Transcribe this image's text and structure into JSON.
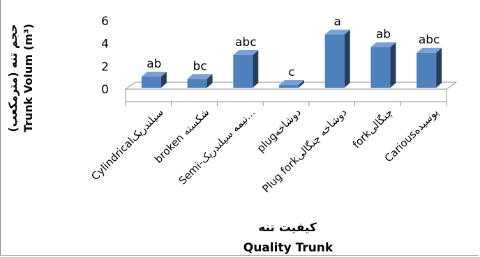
{
  "chart_data": {
    "type": "bar",
    "style": "3d-column",
    "categories": [
      "Cylindricalسیلندریک",
      "broken  شکسته",
      "Semi-نیمه سیلندریک...",
      "plugدوشاخه",
      "Plug forkدوشاخه چنگالی",
      "forkچنگالی",
      "Cariousپوسیده"
    ],
    "values": [
      1.1,
      0.9,
      3.0,
      -0.2,
      4.8,
      3.7,
      3.2
    ],
    "significance_labels": [
      "ab",
      "bc",
      "abc",
      "c",
      "a",
      "ab",
      "abc"
    ],
    "ylabel_fa": "حجم تنه (مترمکعب)",
    "ylabel_en": "Trunk Volum (m³)",
    "xlabel_fa": "کیفیت تنه",
    "xlabel_en": "Quality  Trunk",
    "yticks": [
      0,
      2,
      4,
      6
    ],
    "ylim": [
      0,
      6
    ],
    "bar_color": "#4f81bd",
    "bar_side_color": "#243f60",
    "bar_top_color": "#7ba1d3",
    "grid": false,
    "legend": "none"
  }
}
